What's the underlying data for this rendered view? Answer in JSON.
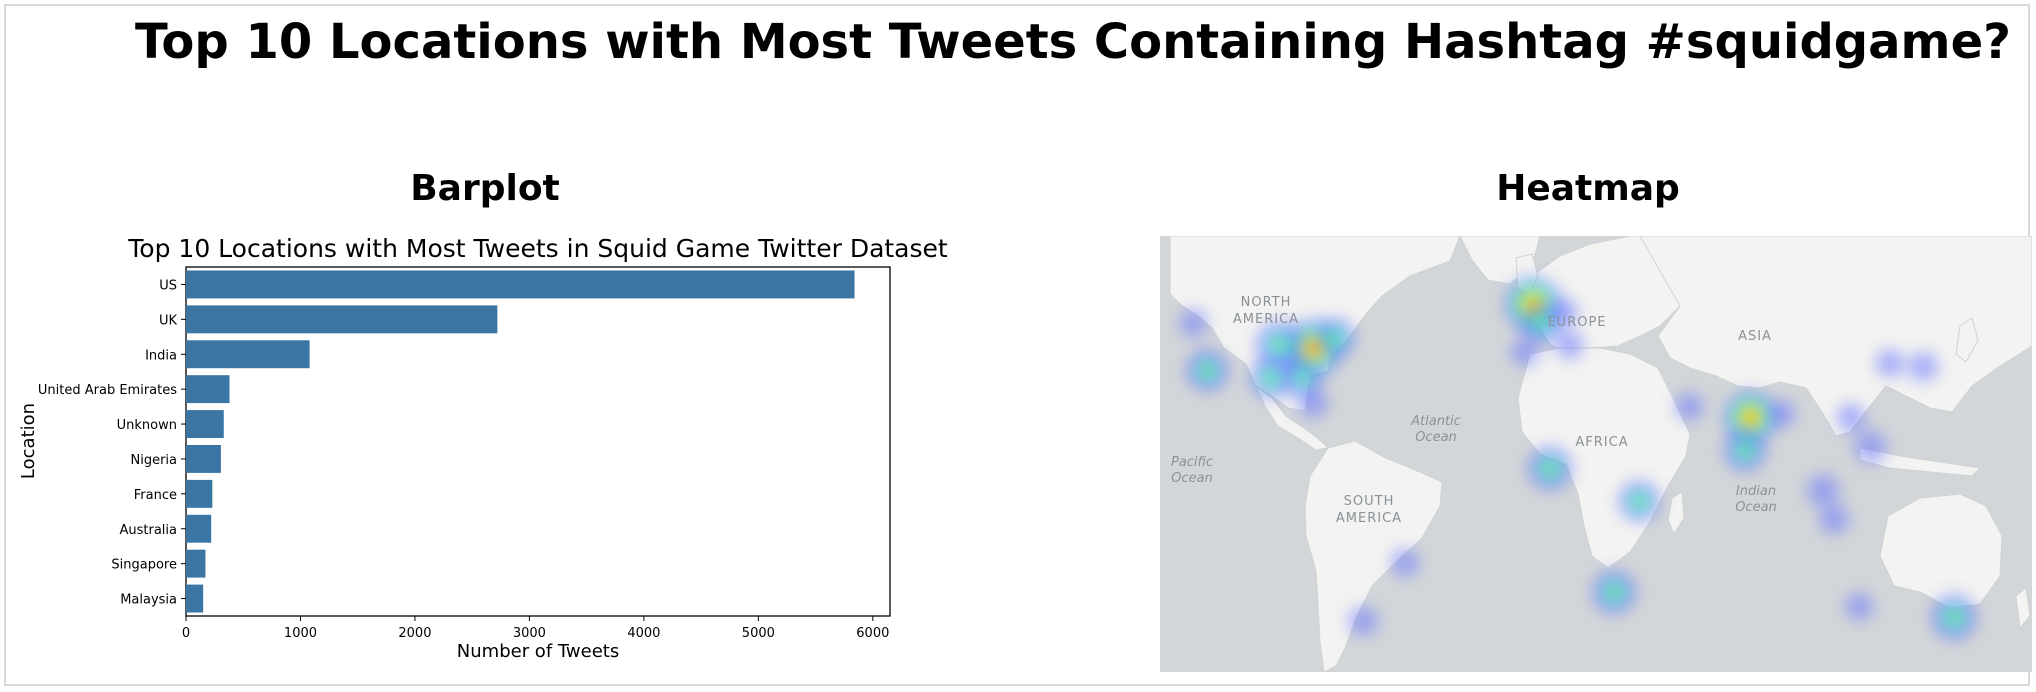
{
  "page": {
    "title": "Top 10 Locations with Most Tweets Containing Hashtag #squidgame?",
    "barplot_heading": "Barplot",
    "heatmap_heading": "Heatmap"
  },
  "chart_data": [
    {
      "type": "bar",
      "orientation": "horizontal",
      "title": "Top 10 Locations with Most Tweets in Squid Game Twitter Dataset",
      "xlabel": "Number of Tweets",
      "ylabel": "Location",
      "categories": [
        "US",
        "UK",
        "India",
        "United Arab Emirates",
        "Unknown",
        "Nigeria",
        "France",
        "Australia",
        "Singapore",
        "Malaysia"
      ],
      "values": [
        5840,
        2720,
        1080,
        380,
        330,
        305,
        230,
        220,
        170,
        150
      ],
      "xlim": [
        0,
        6150
      ],
      "xticks": [
        0,
        1000,
        2000,
        3000,
        4000,
        5000,
        6000
      ],
      "bar_color": "#3b75a3",
      "grid": false
    },
    {
      "type": "heatmap",
      "basemap": "world",
      "map_labels": [
        {
          "text": "NORTH",
          "kind": "continent"
        },
        {
          "text": "AMERICA",
          "kind": "continent"
        },
        {
          "text": "EUROPE",
          "kind": "continent"
        },
        {
          "text": "ASIA",
          "kind": "continent"
        },
        {
          "text": "AFRICA",
          "kind": "continent"
        },
        {
          "text": "SOUTH",
          "kind": "continent"
        },
        {
          "text": "AMERICA",
          "kind": "continent"
        },
        {
          "text": "Atlantic",
          "kind": "ocean"
        },
        {
          "text": "Ocean",
          "kind": "ocean"
        },
        {
          "text": "Pacific",
          "kind": "ocean"
        },
        {
          "text": "Ocean",
          "kind": "ocean"
        },
        {
          "text": "Indian",
          "kind": "ocean"
        },
        {
          "text": "Ocean",
          "kind": "ocean"
        }
      ],
      "hotspots": [
        {
          "lon": -80,
          "lat": 41,
          "intensity": 1.0
        },
        {
          "lon": -92,
          "lat": 42,
          "intensity": 0.75
        },
        {
          "lon": -95,
          "lat": 33,
          "intensity": 0.6
        },
        {
          "lon": -118,
          "lat": 35,
          "intensity": 0.6
        },
        {
          "lon": -84,
          "lat": 33,
          "intensity": 0.5
        },
        {
          "lon": -80,
          "lat": 26,
          "intensity": 0.35
        },
        {
          "lon": -123,
          "lat": 48,
          "intensity": 0.3
        },
        {
          "lon": -72,
          "lat": 44,
          "intensity": 0.5
        },
        {
          "lon": -1,
          "lat": 53,
          "intensity": 0.95
        },
        {
          "lon": 2,
          "lat": 48,
          "intensity": 0.5
        },
        {
          "lon": 10,
          "lat": 51,
          "intensity": 0.3
        },
        {
          "lon": 12,
          "lat": 42,
          "intensity": 0.3
        },
        {
          "lon": -4,
          "lat": 40,
          "intensity": 0.3
        },
        {
          "lon": 55,
          "lat": 25,
          "intensity": 0.3
        },
        {
          "lon": 77,
          "lat": 22,
          "intensity": 0.85
        },
        {
          "lon": 75,
          "lat": 13,
          "intensity": 0.6
        },
        {
          "lon": 88,
          "lat": 23,
          "intensity": 0.3
        },
        {
          "lon": 103,
          "lat": 2,
          "intensity": 0.45
        },
        {
          "lon": 113,
          "lat": 22,
          "intensity": 0.3
        },
        {
          "lon": 120,
          "lat": 14,
          "intensity": 0.45
        },
        {
          "lon": 107,
          "lat": -6,
          "intensity": 0.35
        },
        {
          "lon": 127,
          "lat": 37,
          "intensity": 0.3
        },
        {
          "lon": 139,
          "lat": 36,
          "intensity": 0.35
        },
        {
          "lon": 5,
          "lat": 8,
          "intensity": 0.65
        },
        {
          "lon": 37,
          "lat": -1,
          "intensity": 0.55
        },
        {
          "lon": 28,
          "lat": -26,
          "intensity": 0.65
        },
        {
          "lon": -47,
          "lat": -18,
          "intensity": 0.3
        },
        {
          "lon": -62,
          "lat": -34,
          "intensity": 0.35
        },
        {
          "lon": 150,
          "lat": -33,
          "intensity": 0.7
        },
        {
          "lon": 116,
          "lat": -30,
          "intensity": 0.3
        }
      ]
    }
  ]
}
